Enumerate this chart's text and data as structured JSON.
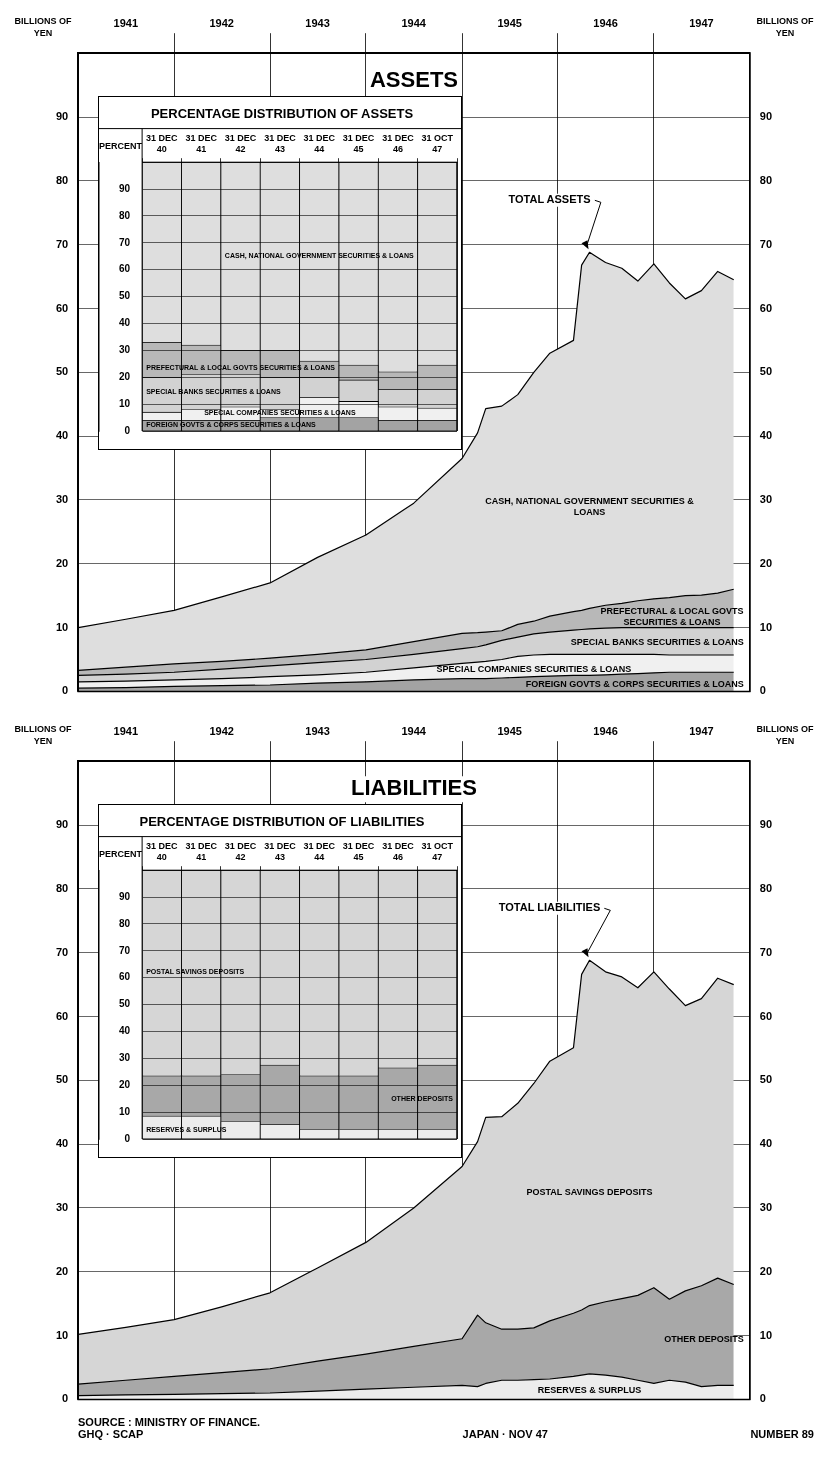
{
  "chart_data": [
    {
      "type": "area",
      "title": "ASSETS",
      "ylabel": "BILLIONS OF YEN",
      "y2label": "BILLIONS OF YEN",
      "stacked": true,
      "grid": true,
      "legend": false,
      "x": [
        "1941-01",
        "1941-07",
        "1942-01",
        "1942-07",
        "1943-01",
        "1943-07",
        "1944-01",
        "1944-07",
        "1945-01",
        "1945-03",
        "1945-04",
        "1945-06",
        "1945-08",
        "1945-10",
        "1945-12",
        "1946-03",
        "1946-04",
        "1946-05",
        "1946-07",
        "1946-09",
        "1946-11",
        "1947-01",
        "1947-03",
        "1947-05",
        "1947-07",
        "1947-09",
        "1947-11"
      ],
      "series": [
        {
          "name": "FOREIGN GOVTS & CORPS SECURITIES & LOANS",
          "color": "#a3a3a3",
          "values": [
            0.5,
            0.6,
            0.8,
            0.9,
            1.0,
            1.3,
            1.5,
            1.8,
            2.0,
            2.0,
            2.0,
            2.1,
            2.2,
            2.3,
            2.4,
            2.5,
            2.5,
            2.5,
            2.6,
            2.7,
            2.8,
            2.9,
            3.0,
            3.0,
            3.0,
            3.0,
            3.0
          ]
        },
        {
          "name": "SPECIAL COMPANIES SECURITIES & LOANS",
          "color": "#f0f0f0",
          "values": [
            1.0,
            1.0,
            1.0,
            1.1,
            1.3,
            1.3,
            1.5,
            1.9,
            2.4,
            2.6,
            2.7,
            2.9,
            3.3,
            3.4,
            3.4,
            3.3,
            3.3,
            3.3,
            3.2,
            3.1,
            3.0,
            2.9,
            2.7,
            2.7,
            2.7,
            2.7,
            2.7
          ]
        },
        {
          "name": "SPECIAL BANKS SECURITIES & LOANS",
          "color": "#d2d2d2",
          "values": [
            1.0,
            1.1,
            1.2,
            1.5,
            1.7,
            1.9,
            2.0,
            2.1,
            2.3,
            2.4,
            2.6,
            3.0,
            3.0,
            3.3,
            3.5,
            3.8,
            3.9,
            4.0,
            4.1,
            4.2,
            4.2,
            4.2,
            4.3,
            4.3,
            4.3,
            4.3,
            4.3
          ]
        },
        {
          "name": "PREFECTURAL & LOCAL GOVTS SECURITIES & LOANS",
          "color": "#b8b8b8",
          "values": [
            0.8,
            1.1,
            1.3,
            1.2,
            1.2,
            1.3,
            1.5,
            2.0,
            2.4,
            2.2,
            2.0,
            1.5,
            2.0,
            2.0,
            2.5,
            2.9,
            3.0,
            3.2,
            3.6,
            3.8,
            4.2,
            4.5,
            4.7,
            5.0,
            5.1,
            5.4,
            6.0
          ]
        },
        {
          "name": "CASH, NATIONAL GOVERNMENT SECURITIES & LOANS",
          "color": "#dedede",
          "values": [
            6.7,
            7.5,
            8.4,
            10.1,
            11.8,
            15.2,
            18.0,
            21.7,
            27.4,
            31.3,
            35.0,
            35.2,
            36.0,
            39.0,
            41.2,
            42.5,
            54.1,
            55.8,
            53.7,
            52.5,
            50.1,
            52.5,
            49.3,
            46.5,
            47.7,
            50.4,
            48.5
          ]
        }
      ],
      "xlim": [
        "1941-01",
        "1948-01"
      ],
      "xticks": [
        {
          "value": "1941-07",
          "label": "1941"
        },
        {
          "value": "1942-01",
          "label": null
        },
        {
          "value": "1942-07",
          "label": "1942"
        },
        {
          "value": "1943-01",
          "label": null
        },
        {
          "value": "1943-07",
          "label": "1943"
        },
        {
          "value": "1944-01",
          "label": null
        },
        {
          "value": "1944-07",
          "label": "1944"
        },
        {
          "value": "1945-01",
          "label": null
        },
        {
          "value": "1945-07",
          "label": "1945"
        },
        {
          "value": "1946-01",
          "label": null
        },
        {
          "value": "1946-07",
          "label": "1946"
        },
        {
          "value": "1947-01",
          "label": null
        },
        {
          "value": "1947-07",
          "label": "1947"
        }
      ],
      "ylim": [
        0,
        100
      ],
      "yticks": [
        0,
        10,
        20,
        30,
        40,
        50,
        60,
        70,
        80,
        90
      ],
      "y2lim": [
        0,
        100
      ],
      "y2ticks": [
        0,
        10,
        20,
        30,
        40,
        50,
        60,
        70,
        80,
        90
      ],
      "annotations": [
        {
          "text": "TOTAL ASSETS",
          "x": "1946-05",
          "y": 68.8
        }
      ]
    },
    {
      "type": "bar",
      "title": "PERCENTAGE DISTRIBUTION OF ASSETS",
      "ylabel": "PERCENT",
      "stacked": true,
      "grid": "y",
      "legend": false,
      "categories": [
        "31 DEC 40",
        "31 DEC 41",
        "31 DEC 42",
        "31 DEC 43",
        "31 DEC 44",
        "31 DEC 45",
        "31 DEC 46",
        "31 OCT 47"
      ],
      "series": [
        {
          "name": "FOREIGN GOVTS & CORPS SECURITIES & LOANS",
          "color": "#a3a3a3",
          "values": [
            4,
            4,
            4,
            5,
            5,
            5,
            4,
            4
          ]
        },
        {
          "name": "SPECIAL COMPANIES SECURITIES & LOANS",
          "color": "#f0f0f0",
          "values": [
            3,
            4,
            5,
            3,
            7.5,
            6,
            5,
            4.5
          ]
        },
        {
          "name": "SPECIAL BANKS SECURITIES & LOANS",
          "color": "#d2d2d2",
          "values": [
            13,
            13,
            12,
            12,
            7.5,
            8,
            6.5,
            7
          ]
        },
        {
          "name": "PREFECTURAL & LOCAL GOVTS SECURITIES & LOANS",
          "color": "#b8b8b8",
          "values": [
            13,
            11,
            9,
            10,
            6,
            5.5,
            6.5,
            9
          ]
        },
        {
          "name": "CASH, NATIONAL GOVERNMENT SECURITIES & LOANS",
          "color": "#dedede",
          "values": [
            67,
            68,
            70,
            70,
            74,
            75.5,
            78,
            75.5
          ]
        }
      ],
      "ylim": [
        0,
        100
      ],
      "yticks": [
        0,
        10,
        20,
        30,
        40,
        50,
        60,
        70,
        80,
        90
      ]
    },
    {
      "type": "area",
      "title": "LIABILITIES",
      "ylabel": "BILLIONS OF YEN",
      "y2label": "BILLIONS OF YEN",
      "stacked": true,
      "grid": true,
      "legend": false,
      "x": [
        "1941-01",
        "1941-07",
        "1942-01",
        "1942-07",
        "1943-01",
        "1943-07",
        "1944-01",
        "1944-07",
        "1945-01",
        "1945-03",
        "1945-04",
        "1945-06",
        "1945-08",
        "1945-10",
        "1945-12",
        "1946-03",
        "1946-04",
        "1946-05",
        "1946-07",
        "1946-09",
        "1946-11",
        "1947-01",
        "1947-03",
        "1947-05",
        "1947-07",
        "1947-09",
        "1947-11"
      ],
      "series": [
        {
          "name": "RESERVES & SURPLUS",
          "color": "#ececec",
          "values": [
            0.6,
            0.7,
            0.8,
            0.9,
            1.0,
            1.3,
            1.6,
            1.9,
            2.2,
            2.0,
            2.5,
            3.0,
            3.0,
            3.1,
            3.2,
            3.6,
            3.8,
            4.0,
            3.8,
            3.5,
            3.0,
            2.5,
            3.0,
            2.7,
            2.0,
            2.2,
            2.2
          ]
        },
        {
          "name": "OTHER DEPOSITS",
          "color": "#a8a8a8",
          "values": [
            1.8,
            2.3,
            2.8,
            3.3,
            3.8,
            4.7,
            5.5,
            6.4,
            7.3,
            11.2,
            9.5,
            8.0,
            8.0,
            8.1,
            9.1,
            9.9,
            10.2,
            10.7,
            11.5,
            12.3,
            13.3,
            15.0,
            12.7,
            14.3,
            15.8,
            16.8,
            15.8
          ]
        },
        {
          "name": "POSTAL SAVINGS DEPOSITS",
          "color": "#d6d6d6",
          "values": [
            7.8,
            8.3,
            8.9,
            10.3,
            11.9,
            14.6,
            17.5,
            21.7,
            27.0,
            27.2,
            32.2,
            33.3,
            35.4,
            38.3,
            40.7,
            41.6,
            52.6,
            54.1,
            51.7,
            50.4,
            48.2,
            49.5,
            48.6,
            44.7,
            45.0,
            47.0,
            47.0
          ]
        }
      ],
      "xlim": [
        "1941-01",
        "1948-01"
      ],
      "xticks": [
        {
          "value": "1941-07",
          "label": "1941"
        },
        {
          "value": "1942-01",
          "label": null
        },
        {
          "value": "1942-07",
          "label": "1942"
        },
        {
          "value": "1943-01",
          "label": null
        },
        {
          "value": "1943-07",
          "label": "1943"
        },
        {
          "value": "1944-01",
          "label": null
        },
        {
          "value": "1944-07",
          "label": "1944"
        },
        {
          "value": "1945-01",
          "label": null
        },
        {
          "value": "1945-07",
          "label": "1945"
        },
        {
          "value": "1946-01",
          "label": null
        },
        {
          "value": "1946-07",
          "label": "1946"
        },
        {
          "value": "1947-01",
          "label": null
        },
        {
          "value": "1947-07",
          "label": "1947"
        }
      ],
      "ylim": [
        0,
        100
      ],
      "yticks": [
        0,
        10,
        20,
        30,
        40,
        50,
        60,
        70,
        80,
        90
      ],
      "y2lim": [
        0,
        100
      ],
      "y2ticks": [
        0,
        10,
        20,
        30,
        40,
        50,
        60,
        70,
        80,
        90
      ],
      "annotations": [
        {
          "text": "TOTAL LIABILITIES",
          "x": "1946-05",
          "y": 68.8
        },
        "SOURCE : MINISTRY OF FINANCE.",
        "GHQ · SCAP",
        "JAPAN · NOV 47",
        "NUMBER 89"
      ]
    },
    {
      "type": "bar",
      "title": "PERCENTAGE DISTRIBUTION OF LIABILITIES",
      "ylabel": "PERCENT",
      "stacked": true,
      "grid": "y",
      "legend": false,
      "categories": [
        "31 DEC 40",
        "31 DEC 41",
        "31 DEC 42",
        "31 DEC 43",
        "31 DEC 44",
        "31 DEC 45",
        "31 DEC 46",
        "31 OCT 47"
      ],
      "series": [
        {
          "name": "RESERVES & SURPLUS",
          "color": "#ececec",
          "values": [
            8.5,
            8.5,
            6.5,
            5.5,
            3.5,
            3.5,
            3.5,
            3.5
          ]
        },
        {
          "name": "OTHER DEPOSITS",
          "color": "#a8a8a8",
          "values": [
            15,
            15,
            17.5,
            22,
            20,
            20,
            23,
            24
          ]
        },
        {
          "name": "POSTAL SAVINGS DEPOSITS",
          "color": "#d6d6d6",
          "values": [
            76.5,
            76.5,
            76,
            72.5,
            76.5,
            76.5,
            73.5,
            72.5
          ]
        }
      ],
      "ylim": [
        0,
        100
      ],
      "yticks": [
        0,
        10,
        20,
        30,
        40,
        50,
        60,
        70,
        80,
        90
      ]
    }
  ]
}
